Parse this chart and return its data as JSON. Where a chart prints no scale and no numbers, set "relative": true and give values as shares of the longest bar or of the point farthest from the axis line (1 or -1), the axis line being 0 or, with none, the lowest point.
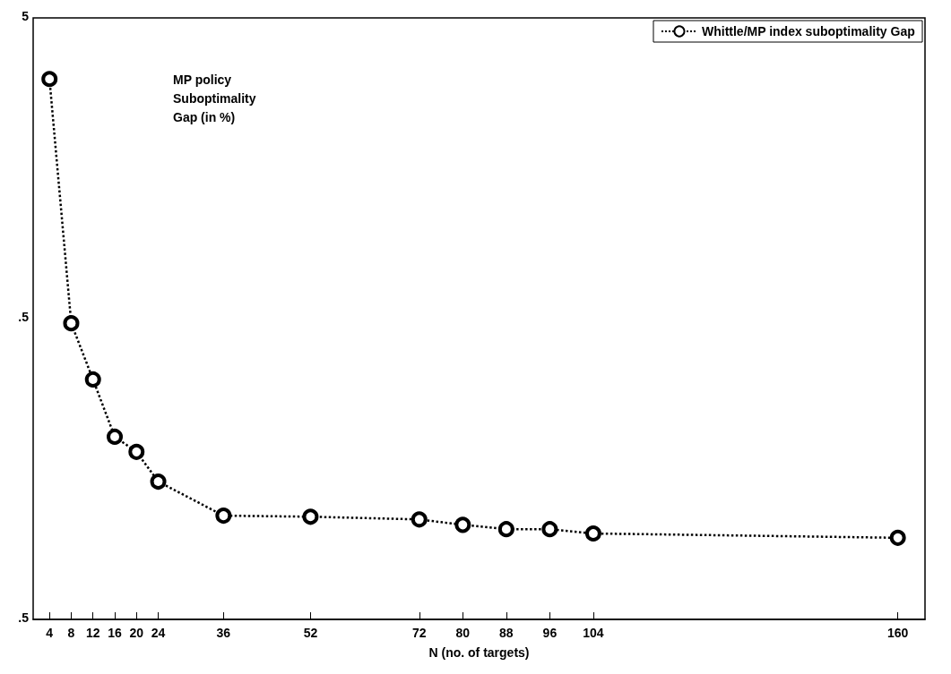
{
  "chart_data": {
    "type": "line",
    "relative": true,
    "xlabel": "N (no. of targets)",
    "xlim": [
      1,
      165
    ],
    "xticks": [
      4,
      8,
      12,
      16,
      20,
      24,
      36,
      52,
      72,
      80,
      88,
      96,
      104,
      160
    ],
    "x": [
      4,
      8,
      12,
      16,
      20,
      24,
      36,
      52,
      72,
      80,
      88,
      96,
      104,
      160
    ],
    "series": [
      {
        "name": "Whittle/MP index suboptimality Gap",
        "color": "#000000",
        "values": [
          1,
          0.548,
          0.444,
          0.338,
          0.31,
          0.255,
          0.192,
          0.19,
          0.185,
          0.175,
          0.167,
          0.167,
          0.159,
          0.151
        ]
      }
    ],
    "annotations": [
      "MP policy\nSuboptimality\nGap (in %)",
      "5",
      ".5",
      ".5"
    ],
    "marker": "circle",
    "line_style": "dotted",
    "legend": "top right",
    "grid": false
  }
}
